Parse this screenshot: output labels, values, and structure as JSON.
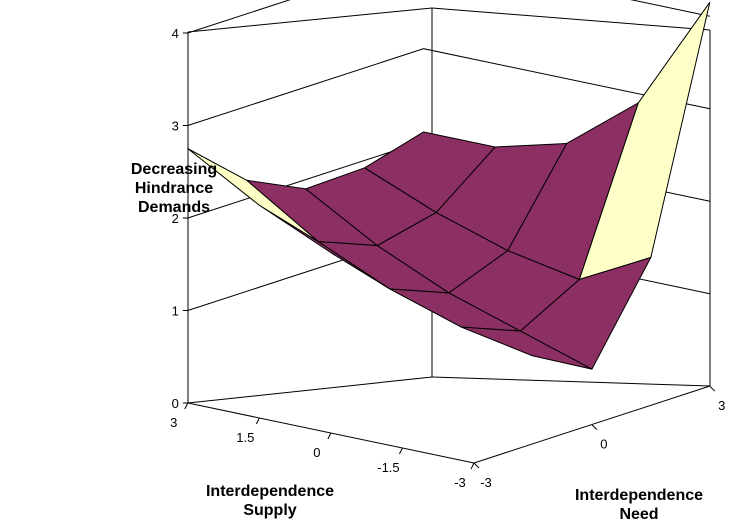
{
  "chart_data": {
    "type": "surface",
    "zlabel_lines": [
      "Decreasing",
      "Hindrance",
      "Demands"
    ],
    "xlabel_lines": [
      "Interdependence",
      "Supply"
    ],
    "ylabel_lines": [
      "Interdependence",
      "Need"
    ],
    "z_ticks": [
      "0",
      "1",
      "2",
      "3",
      "4"
    ],
    "x_ticks": [
      "3",
      "1.5",
      "0",
      "-1.5",
      "-3"
    ],
    "y_ticks": [
      "-3",
      "0",
      "3"
    ],
    "zlim": [
      0,
      4
    ],
    "x": [
      3,
      1.5,
      0,
      -1.5,
      -3
    ],
    "y": [
      -3,
      -1.5,
      0,
      1.5,
      3
    ],
    "z": [
      [
        2.75,
        2.2,
        1.9,
        1.92,
        2.1
      ],
      [
        2.3,
        1.7,
        1.45,
        1.6,
        2.1
      ],
      [
        1.95,
        1.35,
        1.1,
        1.35,
        2.3
      ],
      [
        1.7,
        1.1,
        0.85,
        1.2,
        2.9
      ],
      [
        1.55,
        0.95,
        0.6,
        1.6,
        4.15
      ]
    ],
    "color_bands": [
      {
        "range": "0-2",
        "color": "#8c2f63"
      },
      {
        "range": "2-3",
        "color": "#ffffc8"
      },
      {
        "range": "3-4",
        "color": "#9999ff"
      }
    ],
    "grid": true
  }
}
